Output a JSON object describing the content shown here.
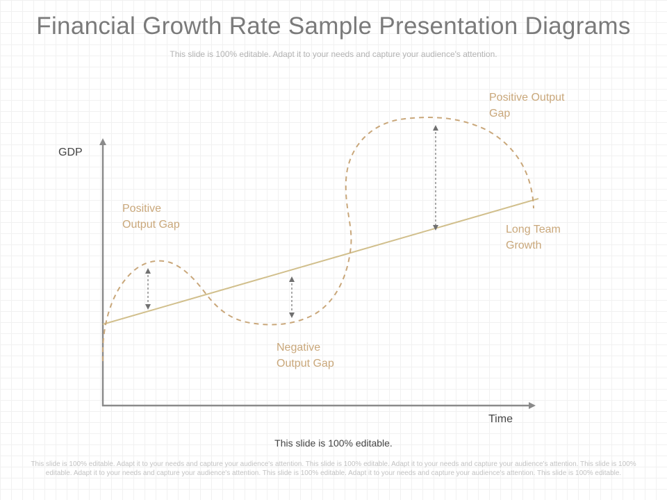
{
  "slide": {
    "title": "Financial Growth Rate Sample Presentation Diagrams",
    "subtitle": "This slide is 100% editable. Adapt it to your needs and capture your audience's attention.",
    "editable_note": "This slide is 100% editable.",
    "footer": "This slide is 100% editable. Adapt it to your needs and capture your audience's attention. This slide is 100% editable. Adapt it to your needs and capture your audience's attention. This slide is 100% editable. Adapt it to your needs and capture your audience's attention. This slide is 100% editable. Adapt it to your needs and capture your audience's attention. This slide is 100% editable."
  },
  "diagram": {
    "y_axis_label": "GDP",
    "x_axis_label": "Time",
    "labels": {
      "positive_gap_left": [
        "Positive",
        "Output Gap"
      ],
      "negative_gap": [
        "Negative",
        "Output Gap"
      ],
      "positive_gap_right": [
        "Positive Output",
        "Gap"
      ],
      "long_term_growth": [
        "Long Team",
        "Growth"
      ]
    },
    "colors": {
      "accent": "#c9a77a",
      "trend_line": "#d1bf8c",
      "axis": "#8a8a8a",
      "arrow": "#707070"
    }
  }
}
